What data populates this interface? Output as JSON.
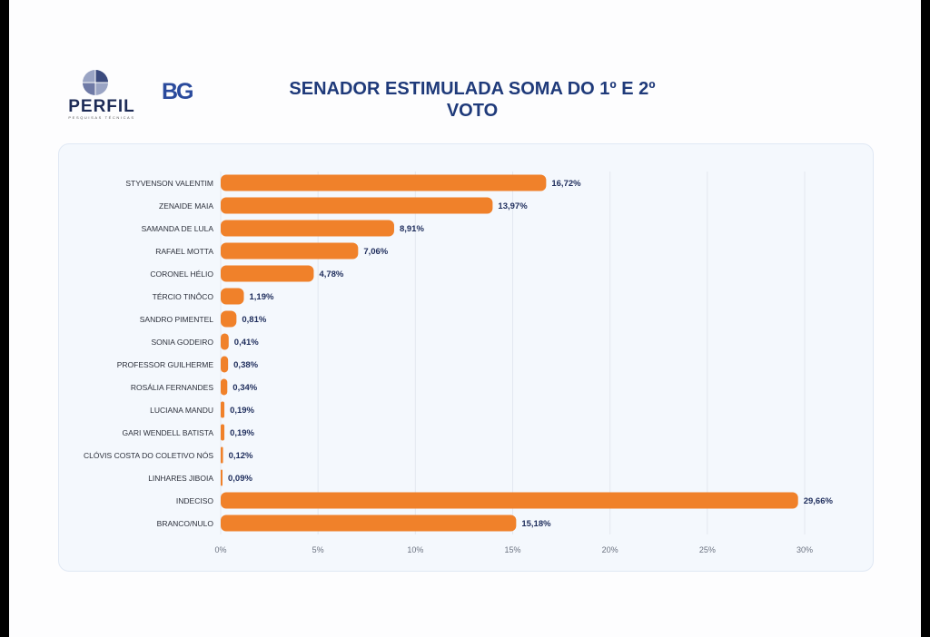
{
  "header": {
    "logo_perfil_text": "PERFIL",
    "logo_perfil_tagline": "PESQUISAS TÉCNICAS",
    "logo_bg_text": "BG",
    "title_line1": "SENADOR ESTIMULADA SOMA DO 1º E 2º",
    "title_line2": "VOTO"
  },
  "colors": {
    "bar": "#f0812a",
    "label_text": "#2b2f3a",
    "value_text": "#1e2d5c",
    "grid": "#e3e8f0",
    "title": "#1f3a7a"
  },
  "chart_data": {
    "type": "bar",
    "orientation": "horizontal",
    "categories": [
      "STYVENSON VALENTIM",
      "ZENAIDE MAIA",
      "SAMANDA DE LULA",
      "RAFAEL MOTTA",
      "CORONEL HÉLIO",
      "TÉRCIO TINÔCO",
      "SANDRO PIMENTEL",
      "SONIA GODEIRO",
      "PROFESSOR GUILHERME",
      "ROSÁLIA FERNANDES",
      "LUCIANA MANDU",
      "GARI WENDELL BATISTA",
      "CLÓVIS COSTA DO COLETIVO NÓS",
      "LINHARES JIBOIA",
      "INDECISO",
      "BRANCO/NULO"
    ],
    "values": [
      16.72,
      13.97,
      8.91,
      7.06,
      4.78,
      1.19,
      0.81,
      0.41,
      0.38,
      0.34,
      0.19,
      0.19,
      0.12,
      0.09,
      29.66,
      15.18
    ],
    "value_labels": [
      "16,72%",
      "13,97%",
      "8,91%",
      "7,06%",
      "4,78%",
      "1,19%",
      "0,81%",
      "0,41%",
      "0,38%",
      "0,34%",
      "0,19%",
      "0,19%",
      "0,12%",
      "0,09%",
      "29,66%",
      "15,18%"
    ],
    "xlim": [
      0,
      30
    ],
    "x_ticks": [
      0,
      5,
      10,
      15,
      20,
      25,
      30
    ],
    "x_tick_labels": [
      "0%",
      "5%",
      "10%",
      "15%",
      "20%",
      "25%",
      "30%"
    ],
    "grid": true,
    "legend": false
  }
}
